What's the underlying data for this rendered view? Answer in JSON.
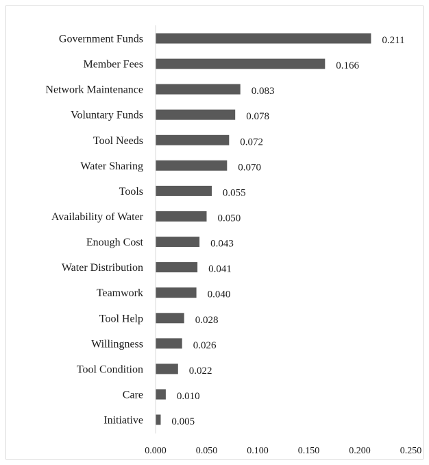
{
  "chart_data": {
    "type": "bar",
    "orientation": "horizontal",
    "categories": [
      "Government Funds",
      "Member Fees",
      "Network Maintenance",
      "Voluntary Funds",
      "Tool Needs",
      "Water Sharing",
      "Tools",
      "Availability of Water",
      "Enough Cost",
      "Water Distribution",
      "Teamwork",
      "Tool Help",
      "Willingness",
      "Tool Condition",
      "Care",
      "Initiative"
    ],
    "values": [
      0.211,
      0.166,
      0.083,
      0.078,
      0.072,
      0.07,
      0.055,
      0.05,
      0.043,
      0.041,
      0.04,
      0.028,
      0.026,
      0.022,
      0.01,
      0.005
    ],
    "value_labels": [
      "0.211",
      "0.166",
      "0.083",
      "0.078",
      "0.072",
      "0.070",
      "0.055",
      "0.050",
      "0.043",
      "0.041",
      "0.040",
      "0.028",
      "0.026",
      "0.022",
      "0.010",
      "0.005"
    ],
    "x_ticks": [
      "0.000",
      "0.050",
      "0.100",
      "0.150",
      "0.200",
      "0.250"
    ],
    "xlim": [
      0,
      0.25
    ],
    "grid": false,
    "legend": "none",
    "bar_color": "#595959",
    "axis_color": "#d9d9d9"
  }
}
